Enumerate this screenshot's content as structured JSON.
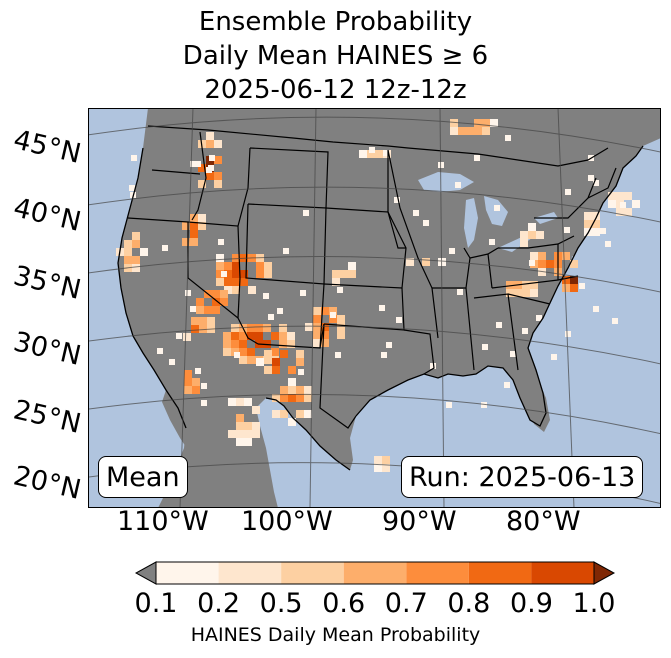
{
  "title": {
    "line1": "Ensemble Probability",
    "line2": "Daily Mean HAINES ≥ 6",
    "line3": "2025-06-12 12z-12z"
  },
  "map": {
    "region": "Contiguous United States",
    "ocean_color": "#b0c4de",
    "land_color": "#808080",
    "lat_labels": [
      "45°N",
      "40°N",
      "35°N",
      "30°N",
      "25°N",
      "20°N"
    ],
    "lon_labels": [
      "110°W",
      "100°W",
      "90°W",
      "80°W"
    ],
    "left_tag": "Mean",
    "right_tag": "Run: 2025-06-13"
  },
  "colorbar": {
    "label": "HAINES Daily Mean Probability",
    "ticks": [
      "0.1",
      "0.2",
      "0.5",
      "0.6",
      "0.7",
      "0.8",
      "0.9",
      "1.0"
    ],
    "under_color": "#808080",
    "over_color": "#7f2704",
    "colors": [
      "#fff5eb",
      "#fee6ce",
      "#fdd0a2",
      "#fdae6b",
      "#fd8d3c",
      "#f16913",
      "#d94801"
    ]
  }
}
